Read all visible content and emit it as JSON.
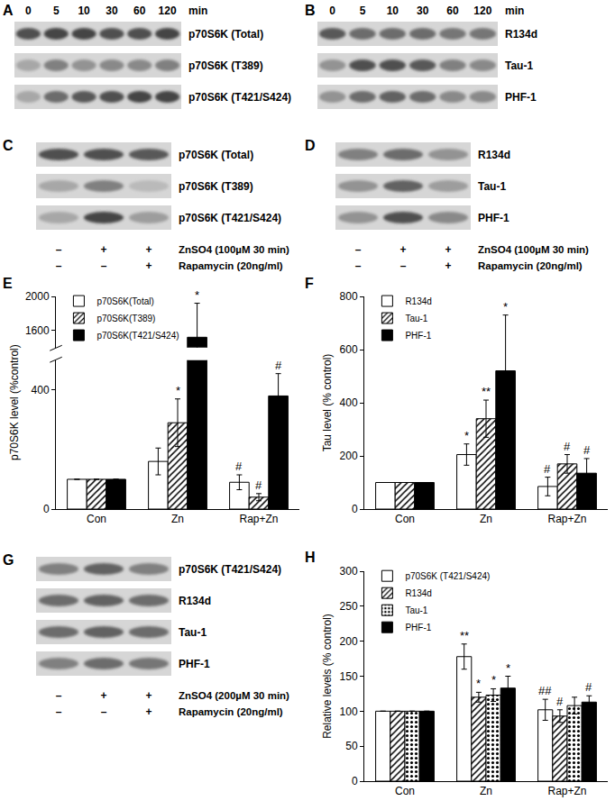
{
  "panels": [
    {
      "label": "A",
      "type": "blot",
      "lanes": [
        "0",
        "5",
        "10",
        "30",
        "60",
        "120"
      ],
      "lane_unit": "min",
      "bands": [
        {
          "name": "p70S6K (Total)",
          "intensity": [
            0.75,
            0.8,
            0.8,
            0.75,
            0.75,
            0.8
          ]
        },
        {
          "name": "p70S6K (T389)",
          "intensity": [
            0.3,
            0.5,
            0.4,
            0.45,
            0.45,
            0.5
          ]
        },
        {
          "name": "p70S6K (T421/S424)",
          "intensity": [
            0.3,
            0.6,
            0.7,
            0.75,
            0.8,
            0.8
          ]
        }
      ]
    },
    {
      "label": "B",
      "type": "blot",
      "lanes": [
        "0",
        "5",
        "10",
        "30",
        "60",
        "120"
      ],
      "lane_unit": "min",
      "bands": [
        {
          "name": "R134d",
          "intensity": [
            0.7,
            0.6,
            0.6,
            0.6,
            0.55,
            0.55
          ]
        },
        {
          "name": "Tau-1",
          "intensity": [
            0.4,
            0.75,
            0.75,
            0.7,
            0.5,
            0.45
          ]
        },
        {
          "name": "PHF-1",
          "intensity": [
            0.4,
            0.6,
            0.65,
            0.6,
            0.45,
            0.45
          ]
        }
      ]
    },
    {
      "label": "C",
      "type": "blot",
      "bands": [
        {
          "name": "p70S6K (Total)",
          "intensity": [
            0.75,
            0.75,
            0.7
          ]
        },
        {
          "name": "p70S6K (T389)",
          "intensity": [
            0.3,
            0.5,
            0.2
          ]
        },
        {
          "name": "p70S6K (T421/S424)",
          "intensity": [
            0.3,
            0.8,
            0.35
          ]
        }
      ],
      "treatments": [
        {
          "name": "ZnSO4 (100µM 30 min)",
          "signs": [
            "–",
            "+",
            "+"
          ]
        },
        {
          "name": "Rapamycin (20ng/ml)",
          "signs": [
            "–",
            "–",
            "+"
          ]
        }
      ]
    },
    {
      "label": "D",
      "type": "blot",
      "bands": [
        {
          "name": "R134d",
          "intensity": [
            0.5,
            0.6,
            0.4
          ]
        },
        {
          "name": "Tau-1",
          "intensity": [
            0.4,
            0.65,
            0.35
          ]
        },
        {
          "name": "PHF-1",
          "intensity": [
            0.4,
            0.75,
            0.45
          ]
        }
      ],
      "treatments": [
        {
          "name": "ZnSO4 (100µM 30 min)",
          "signs": [
            "–",
            "+",
            "+"
          ]
        },
        {
          "name": "Rapamycin (20ng/ml)",
          "signs": [
            "–",
            "–",
            "+"
          ]
        }
      ]
    },
    {
      "label": "G",
      "type": "blot",
      "bands": [
        {
          "name": "p70S6K (T421/S424)",
          "intensity": [
            0.5,
            0.65,
            0.5
          ]
        },
        {
          "name": "R134d",
          "intensity": [
            0.6,
            0.65,
            0.6
          ]
        },
        {
          "name": "Tau-1",
          "intensity": [
            0.6,
            0.65,
            0.6
          ]
        },
        {
          "name": "PHF-1",
          "intensity": [
            0.5,
            0.6,
            0.55
          ]
        }
      ],
      "treatments": [
        {
          "name": "ZnSO4 (200µM 30 min)",
          "signs": [
            "–",
            "+",
            "+"
          ]
        },
        {
          "name": "Rapamycin (20ng/ml)",
          "signs": [
            "–",
            "–",
            "+"
          ]
        }
      ]
    }
  ],
  "chart_data": [
    {
      "label": "E",
      "type": "bar",
      "ylabel": "p70S6K level (%control)",
      "categories": [
        "Con",
        "Zn",
        "Rap+Zn"
      ],
      "ylim": [
        [
          0,
          500
        ],
        [
          1400,
          2000
        ]
      ],
      "yticks": [
        0,
        400,
        1600,
        2000
      ],
      "grid": false,
      "legend": "top left",
      "series": [
        {
          "name": "p70S6K(Total)",
          "color": "#ffffff",
          "marker": "solid",
          "values": [
            100,
            160,
            90
          ],
          "errors": [
            null,
            45,
            25
          ],
          "annotations": [
            null,
            null,
            "#"
          ]
        },
        {
          "name": "p70S6K(T389)",
          "color": "#ffffff",
          "marker": "hatch",
          "values": [
            100,
            290,
            40
          ],
          "errors": [
            null,
            80,
            12
          ],
          "annotations": [
            null,
            "*",
            "#"
          ]
        },
        {
          "name": "p70S6K(T421/S424)",
          "color": "#000000",
          "marker": "solid",
          "values": [
            100,
            1520,
            380
          ],
          "errors": [
            null,
            400,
            75
          ],
          "annotations": [
            null,
            "*",
            "#"
          ]
        }
      ]
    },
    {
      "label": "F",
      "type": "bar",
      "ylabel": "Tau level (% control)",
      "categories": [
        "Con",
        "Zn",
        "Rap+Zn"
      ],
      "ylim": [
        0,
        800
      ],
      "yticks": [
        0,
        200,
        400,
        600,
        800
      ],
      "grid": false,
      "legend": "top left",
      "series": [
        {
          "name": "R134d",
          "color": "#ffffff",
          "marker": "solid",
          "values": [
            100,
            205,
            85
          ],
          "errors": [
            null,
            40,
            35
          ],
          "annotations": [
            null,
            "*",
            "#"
          ]
        },
        {
          "name": "Tau-1",
          "color": "#ffffff",
          "marker": "hatch",
          "values": [
            100,
            340,
            170
          ],
          "errors": [
            null,
            70,
            35
          ],
          "annotations": [
            null,
            "**",
            "#"
          ]
        },
        {
          "name": "PHF-1",
          "color": "#000000",
          "marker": "solid",
          "values": [
            100,
            520,
            135
          ],
          "errors": [
            null,
            210,
            55
          ],
          "annotations": [
            null,
            "*",
            "#"
          ]
        }
      ]
    },
    {
      "label": "H",
      "type": "bar",
      "ylabel": "Relative levels (% control)",
      "categories": [
        "Con",
        "Zn",
        "Rap+Zn"
      ],
      "ylim": [
        0,
        300
      ],
      "yticks": [
        0,
        50,
        100,
        150,
        200,
        250,
        300
      ],
      "grid": false,
      "legend": "top left",
      "series": [
        {
          "name": "p70S6K (T421/S424)",
          "color": "#ffffff",
          "marker": "solid",
          "values": [
            100,
            178,
            102
          ],
          "errors": [
            null,
            18,
            15
          ],
          "annotations": [
            null,
            "**",
            "##"
          ]
        },
        {
          "name": "R134d",
          "color": "#ffffff",
          "marker": "hatch",
          "values": [
            100,
            120,
            93
          ],
          "errors": [
            null,
            7,
            9
          ],
          "annotations": [
            null,
            "*",
            "#"
          ]
        },
        {
          "name": "Tau-1",
          "color": "#ffffff",
          "marker": "dots",
          "values": [
            100,
            123,
            108
          ],
          "errors": [
            null,
            9,
            12
          ],
          "annotations": [
            null,
            "*",
            null
          ]
        },
        {
          "name": "PHF-1",
          "color": "#000000",
          "marker": "solid",
          "values": [
            100,
            133,
            113
          ],
          "errors": [
            null,
            17,
            9
          ],
          "annotations": [
            null,
            "*",
            "#"
          ]
        }
      ]
    }
  ]
}
